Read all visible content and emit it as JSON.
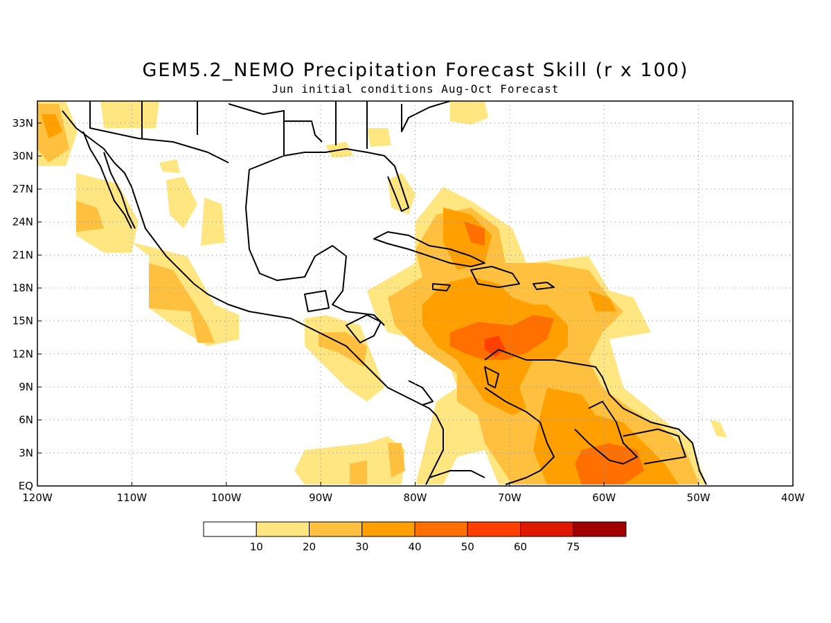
{
  "title": "GEM5.2_NEMO Precipitation Forecast Skill (r x 100)",
  "subtitle": "Jun initial conditions  Aug-Oct Forecast",
  "map": {
    "lon_range": [
      -120,
      -40
    ],
    "lat_range": [
      0,
      35
    ],
    "x_ticks": [
      {
        "lon": -120,
        "label": "120W"
      },
      {
        "lon": -110,
        "label": "110W"
      },
      {
        "lon": -100,
        "label": "100W"
      },
      {
        "lon": -90,
        "label": "90W"
      },
      {
        "lon": -80,
        "label": "80W"
      },
      {
        "lon": -70,
        "label": "70W"
      },
      {
        "lon": -60,
        "label": "60W"
      },
      {
        "lon": -50,
        "label": "50W"
      },
      {
        "lon": -40,
        "label": "40W"
      }
    ],
    "y_ticks": [
      {
        "lat": 0,
        "label": "EQ"
      },
      {
        "lat": 3,
        "label": "3N"
      },
      {
        "lat": 6,
        "label": "6N"
      },
      {
        "lat": 9,
        "label": "9N"
      },
      {
        "lat": 12,
        "label": "12N"
      },
      {
        "lat": 15,
        "label": "15N"
      },
      {
        "lat": 18,
        "label": "18N"
      },
      {
        "lat": 21,
        "label": "21N"
      },
      {
        "lat": 24,
        "label": "24N"
      },
      {
        "lat": 27,
        "label": "27N"
      },
      {
        "lat": 30,
        "label": "30N"
      },
      {
        "lat": 33,
        "label": "33N"
      }
    ],
    "grid": true
  },
  "legend": {
    "colors": [
      "#ffffff",
      "#ffe680",
      "#ffc040",
      "#ffa000",
      "#ff7000",
      "#ff4000",
      "#e01800",
      "#a00000"
    ],
    "labels": [
      "10",
      "20",
      "30",
      "40",
      "50",
      "60",
      "75"
    ]
  }
}
